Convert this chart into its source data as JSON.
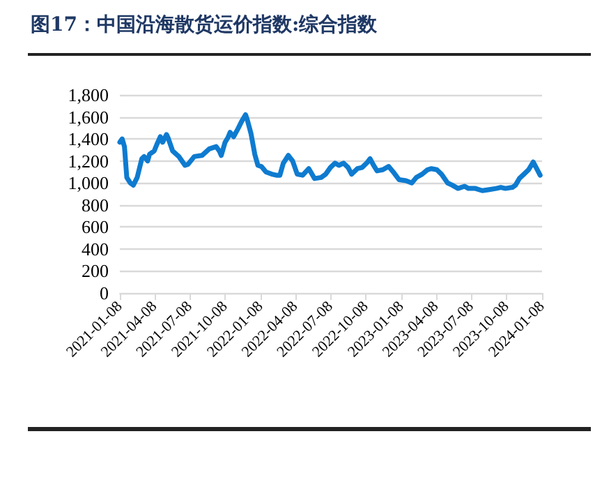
{
  "chart_data": {
    "type": "line",
    "title": "图17：中国沿海散货运价指数:综合指数",
    "x": [
      "2021-01-08",
      "2021-01-14",
      "2021-01-20",
      "2021-01-26",
      "2021-02-04",
      "2021-02-12",
      "2021-02-22",
      "2021-03-06",
      "2021-03-12",
      "2021-03-21",
      "2021-03-26",
      "2021-04-07",
      "2021-04-14",
      "2021-04-23",
      "2021-04-29",
      "2021-05-09",
      "2021-05-13",
      "2021-05-25",
      "2021-06-10",
      "2021-06-26",
      "2021-07-04",
      "2021-07-20",
      "2021-08-09",
      "2021-08-28",
      "2021-09-15",
      "2021-09-23",
      "2021-09-28",
      "2021-10-08",
      "2021-10-15",
      "2021-10-21",
      "2021-10-30",
      "2021-11-10",
      "2021-11-20",
      "2021-11-30",
      "2021-12-04",
      "2021-12-14",
      "2021-12-24",
      "2022-01-01",
      "2022-01-10",
      "2022-01-22",
      "2022-02-06",
      "2022-02-18",
      "2022-02-27",
      "2022-03-08",
      "2022-03-21",
      "2022-04-01",
      "2022-04-13",
      "2022-04-27",
      "2022-05-13",
      "2022-05-28",
      "2022-06-14",
      "2022-06-26",
      "2022-07-08",
      "2022-07-20",
      "2022-07-30",
      "2022-08-11",
      "2022-08-23",
      "2022-09-01",
      "2022-09-16",
      "2022-09-28",
      "2022-10-10",
      "2022-10-19",
      "2022-10-28",
      "2022-11-06",
      "2022-11-21",
      "2022-12-06",
      "2022-12-18",
      "2023-01-02",
      "2023-01-20",
      "2023-02-04",
      "2023-02-16",
      "2023-03-03",
      "2023-03-17",
      "2023-03-27",
      "2023-04-10",
      "2023-04-22",
      "2023-05-08",
      "2023-05-20",
      "2023-06-04",
      "2023-06-21",
      "2023-07-01",
      "2023-07-19",
      "2023-08-06",
      "2023-08-24",
      "2023-09-11",
      "2023-09-23",
      "2023-10-05",
      "2023-10-23",
      "2023-10-31",
      "2023-11-10",
      "2023-11-22",
      "2023-12-04",
      "2023-12-16",
      "2023-12-25",
      "2024-01-03"
    ],
    "series": [
      {
        "color": "#0e7bd0",
        "values": [
          1370,
          1400,
          1330,
          1050,
          1000,
          980,
          1050,
          1220,
          1240,
          1200,
          1260,
          1290,
          1350,
          1420,
          1370,
          1440,
          1410,
          1290,
          1240,
          1160,
          1170,
          1240,
          1250,
          1310,
          1330,
          1290,
          1250,
          1370,
          1410,
          1460,
          1420,
          1490,
          1560,
          1620,
          1580,
          1450,
          1260,
          1160,
          1150,
          1100,
          1080,
          1070,
          1070,
          1180,
          1250,
          1200,
          1080,
          1070,
          1130,
          1040,
          1050,
          1080,
          1140,
          1180,
          1160,
          1180,
          1140,
          1080,
          1130,
          1140,
          1180,
          1220,
          1160,
          1110,
          1120,
          1150,
          1100,
          1030,
          1020,
          1000,
          1050,
          1080,
          1120,
          1130,
          1120,
          1080,
          1000,
          980,
          950,
          970,
          950,
          950,
          930,
          940,
          950,
          960,
          950,
          960,
          980,
          1040,
          1080,
          1120,
          1190,
          1130,
          1070
        ]
      }
    ],
    "xlim": [
      "2021-01-08",
      "2024-01-08"
    ],
    "xticks": [
      "2021-01-08",
      "2021-04-08",
      "2021-07-08",
      "2021-10-08",
      "2022-01-08",
      "2022-04-08",
      "2022-07-08",
      "2022-10-08",
      "2023-01-08",
      "2023-04-08",
      "2023-07-08",
      "2023-10-08",
      "2024-01-08"
    ],
    "ylim": [
      0,
      1800
    ],
    "yticks": [
      0,
      200,
      400,
      600,
      800,
      {
        "value": 1000,
        "label": "1,000"
      },
      {
        "value": 1200,
        "label": "1,200"
      },
      {
        "value": 1400,
        "label": "1,400"
      },
      {
        "value": 1600,
        "label": "1,600"
      },
      {
        "value": 1800,
        "label": "1,800"
      }
    ],
    "grid": "y",
    "marker": "none",
    "line_style": "solid"
  }
}
